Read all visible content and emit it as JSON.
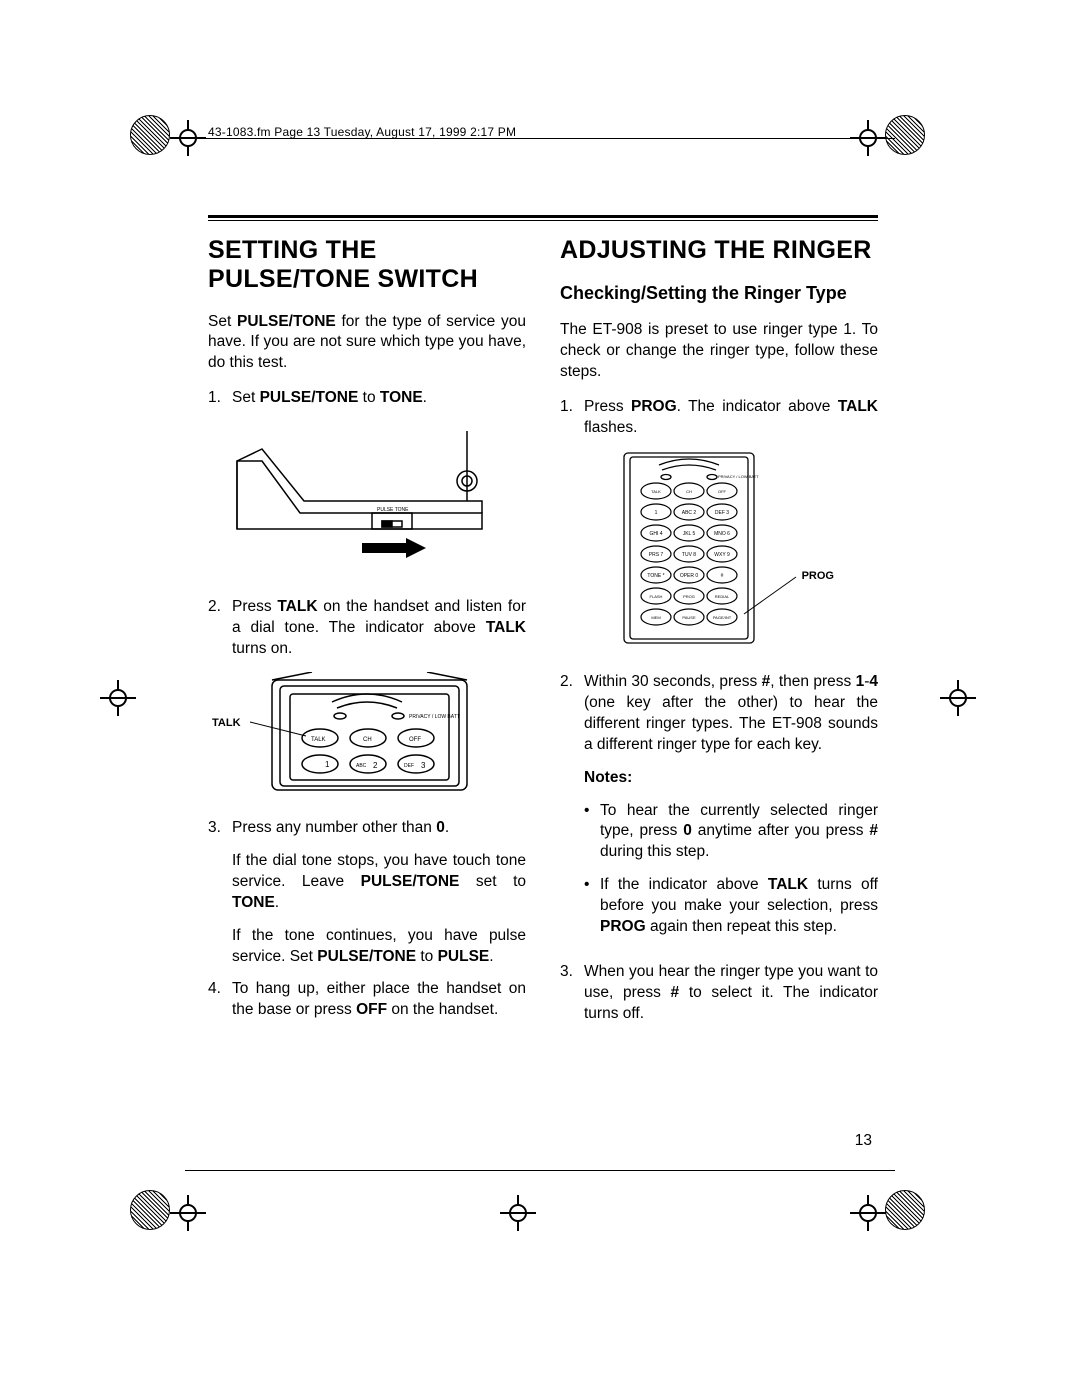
{
  "header_path": "43-1083.fm  Page 13  Tuesday, August 17, 1999  2:17 PM",
  "page_number": "13",
  "colors": {
    "text": "#000000",
    "background": "#ffffff",
    "rule": "#000000"
  },
  "typography": {
    "body_font": "Arial, Helvetica, sans-serif",
    "body_size_pt": 11,
    "h1_size_pt": 18,
    "h2_size_pt": 13,
    "header_path_size_pt": 8
  },
  "left_column": {
    "heading": "SETTING THE PULSE/TONE SWITCH",
    "intro_parts": [
      "Set ",
      "PULSE/TONE",
      " for the type of service you have. If you are not sure which type you have, do this test."
    ],
    "step1_parts": [
      "Set ",
      "PULSE/TONE",
      " to ",
      "TONE",
      "."
    ],
    "step2_parts": [
      "Press ",
      "TALK",
      " on the handset and listen for a dial tone. The indicator above ",
      "TALK",
      " turns on."
    ],
    "step3_line1_parts": [
      "Press any number other than ",
      "0",
      "."
    ],
    "step3_line2_parts": [
      "If the dial tone stops, you have touch tone service. Leave ",
      "PULSE/TONE",
      " set to ",
      "TONE",
      "."
    ],
    "step3_line3_parts": [
      "If the tone continues, you have pulse service. Set ",
      "PULSE/TONE",
      " to ",
      "PULSE",
      "."
    ],
    "step4_parts": [
      "To hang up, either place the handset on the base or press ",
      "OFF",
      " on the handset."
    ],
    "fig1": {
      "type": "line-drawing",
      "description": "phone base side view with PULSE/TONE switch and arrow",
      "switch_label": "PULSE  TONE",
      "arrow_direction": "right"
    },
    "fig2": {
      "type": "line-drawing",
      "description": "handset top with TALK/CH/OFF and keypad 1 2 3",
      "callout_label": "TALK",
      "button_labels": [
        "TALK",
        "CH",
        "OFF"
      ],
      "key_labels": [
        "1",
        "ABC 2",
        "DEF 3"
      ],
      "indicator_label": "PRIVACY / LOW BATT"
    }
  },
  "right_column": {
    "heading": "ADJUSTING THE RINGER",
    "subheading": "Checking/Setting the Ringer Type",
    "intro": "The ET-908 is preset to use ringer type 1. To check or change the ringer type, follow these steps.",
    "step1_parts": [
      "Press ",
      "PROG",
      ". The indicator above ",
      "TALK",
      " flashes."
    ],
    "step2_parts": [
      "Within 30 seconds, press ",
      "#",
      ", then press ",
      "1",
      "-",
      "4",
      " (one key after the other) to hear the different ringer types. The ET-908 sounds a different ringer type for each key."
    ],
    "notes_label": "Notes",
    "note1_parts": [
      "To hear the currently selected ringer type, press ",
      "0",
      " anytime after you press ",
      "#",
      " during this step."
    ],
    "note2_parts": [
      "If the indicator above ",
      "TALK",
      " turns off before you make your selection, press ",
      "PROG",
      " again then repeat this step."
    ],
    "step3_parts": [
      "When you hear the ringer type you want to use, press ",
      "#",
      " to select it. The indicator turns off."
    ],
    "fig3": {
      "type": "line-drawing",
      "description": "handset keypad with callout line to bottom-right key",
      "callout_label": "PROG",
      "indicator_label": "PRIVACY / LOW BATT",
      "rows": [
        [
          "TALK",
          "CH",
          "OFF"
        ],
        [
          "1",
          "ABC 2",
          "DEF 3"
        ],
        [
          "GHI 4",
          "JKL 5",
          "MNO 6"
        ],
        [
          "PRS 7",
          "TUV 8",
          "WXY 9"
        ],
        [
          "TONE *",
          "OPER 0",
          "#"
        ],
        [
          "FLASH",
          "PROG",
          "REDIAL"
        ],
        [
          "MEM",
          "PAUSE",
          "PAGE/INT"
        ]
      ]
    }
  }
}
